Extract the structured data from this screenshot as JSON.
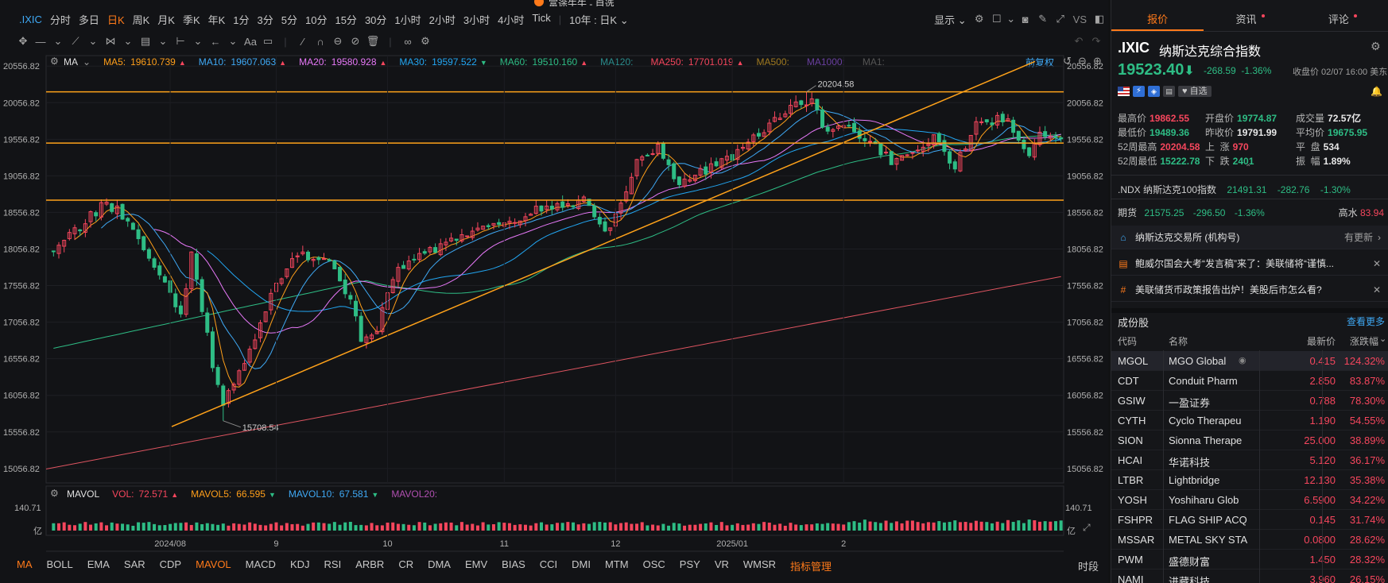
{
  "window_title": "富途牛牛 - 自选",
  "toolbar": {
    "symbol": ".IXIC",
    "periods": [
      "分时",
      "多日",
      "日K",
      "周K",
      "月K",
      "季K",
      "年K",
      "1分",
      "3分",
      "5分",
      "10分",
      "15分",
      "30分",
      "1小时",
      "2小时",
      "3小时",
      "4小时",
      "Tick"
    ],
    "active_period": "日K",
    "range_select": "10年 : 日K",
    "display_label": "显示",
    "vs_label": "VS"
  },
  "chart_header": {
    "ma_label": "MA",
    "ma_items": [
      {
        "label": "MA5:",
        "value": "19610.739",
        "color": "#ff9f1a",
        "dir": "up"
      },
      {
        "label": "MA10:",
        "value": "19607.063",
        "color": "#3fa9f5",
        "dir": "up"
      },
      {
        "label": "MA20:",
        "value": "19580.928",
        "color": "#e879f9",
        "dir": "up"
      },
      {
        "label": "MA30:",
        "value": "19597.522",
        "color": "#22a6f2",
        "dir": "down"
      },
      {
        "label": "MA60:",
        "value": "19510.160",
        "color": "#2ebd85",
        "dir": "up"
      },
      {
        "label": "MA120:",
        "value": "",
        "color": "#2a8c8c",
        "dir": ""
      },
      {
        "label": "MA250:",
        "value": "17701.019",
        "color": "#f6465d",
        "dir": "up"
      },
      {
        "label": "MA500:",
        "value": "",
        "color": "#a07a20",
        "dir": ""
      },
      {
        "label": "MA1000:",
        "value": "",
        "color": "#6a3fa0",
        "dir": ""
      },
      {
        "label": "MA1:",
        "value": "",
        "color": "#555555",
        "dir": ""
      }
    ],
    "adjust_label": "前复权"
  },
  "chart_data": {
    "type": "candlestick",
    "y_ticks": [
      "20556.82",
      "20056.82",
      "19556.82",
      "19056.82",
      "18556.82",
      "18056.82",
      "17556.82",
      "17056.82",
      "16556.82",
      "16056.82",
      "15556.82",
      "15056.82"
    ],
    "x_ticks": [
      "2024/08",
      "9",
      "10",
      "11",
      "12",
      "2025/01",
      "2"
    ],
    "annotations": {
      "high": "20204.58",
      "low": "15708.54"
    },
    "ylim": [
      14860,
      20700
    ],
    "horizontal_levels": [
      20204.58,
      19505,
      18725
    ],
    "seed": 20250207,
    "start_price": 18045,
    "targets": [
      [
        0,
        18050
      ],
      [
        10,
        18700
      ],
      [
        14,
        18450
      ],
      [
        18,
        18000
      ],
      [
        24,
        17200
      ],
      [
        26,
        17950
      ],
      [
        30,
        16500
      ],
      [
        32,
        15900
      ],
      [
        34,
        16250
      ],
      [
        38,
        16800
      ],
      [
        42,
        17600
      ],
      [
        46,
        17950
      ],
      [
        52,
        17950
      ],
      [
        56,
        17350
      ],
      [
        58,
        16850
      ],
      [
        61,
        16950
      ],
      [
        64,
        17700
      ],
      [
        70,
        18000
      ],
      [
        78,
        18300
      ],
      [
        84,
        18400
      ],
      [
        92,
        18600
      ],
      [
        100,
        18700
      ],
      [
        104,
        18300
      ],
      [
        106,
        18500
      ],
      [
        110,
        19300
      ],
      [
        114,
        19450
      ],
      [
        118,
        18950
      ],
      [
        122,
        19100
      ],
      [
        128,
        19300
      ],
      [
        134,
        19700
      ],
      [
        140,
        20050
      ],
      [
        143,
        20100
      ],
      [
        145,
        19700
      ],
      [
        150,
        19700
      ],
      [
        154,
        19500
      ],
      [
        158,
        19250
      ],
      [
        162,
        19350
      ],
      [
        166,
        19550
      ],
      [
        170,
        19200
      ],
      [
        174,
        19750
      ],
      [
        180,
        19850
      ],
      [
        184,
        19300
      ],
      [
        186,
        19600
      ],
      [
        190,
        19523
      ]
    ],
    "volume_label_max": "140.71",
    "volume_unit": "亿"
  },
  "volume_header": {
    "label": "MAVOL",
    "items": [
      {
        "label": "VOL:",
        "value": "72.571",
        "color": "#f6465d",
        "dir": "up"
      },
      {
        "label": "MAVOL5:",
        "value": "66.595",
        "color": "#ff9f1a",
        "dir": "down"
      },
      {
        "label": "MAVOL10:",
        "value": "67.581",
        "color": "#3fa9f5",
        "dir": "down"
      },
      {
        "label": "MAVOL20:",
        "value": "",
        "color": "#b04fb0",
        "dir": ""
      }
    ]
  },
  "indicators": {
    "items": [
      "MA",
      "BOLL",
      "EMA",
      "SAR",
      "CDP",
      "MAVOL",
      "MACD",
      "KDJ",
      "RSI",
      "ARBR",
      "CR",
      "DMA",
      "EMV",
      "BIAS",
      "CCI",
      "DMI",
      "MTM",
      "OSC",
      "PSY",
      "VR",
      "WMSR",
      "指标管理"
    ],
    "active": [
      "MA",
      "MAVOL",
      "指标管理"
    ],
    "right_label": "时段"
  },
  "quote": {
    "tabs": [
      "报价",
      "资讯",
      "评论"
    ],
    "code": ".IXIC",
    "name": "纳斯达克综合指数",
    "price": "19523.40",
    "change": "-268.59",
    "change_pct": "-1.36%",
    "close_time": "收盘价 02/07 16:00 美东",
    "watch_label": "自选",
    "stats": {
      "high_l": "最高价",
      "high_v": "19862.55",
      "open_l": "开盘价",
      "open_v": "19774.87",
      "volume_l": "成交量",
      "volume_v": "72.57亿",
      "low_l": "最低价",
      "low_v": "19489.36",
      "prev_l": "昨收价",
      "prev_v": "19791.99",
      "avg_l": "平均价",
      "avg_v": "19675.95",
      "wk52h_l": "52周最高",
      "wk52h_v": "20204.58",
      "up_l": "上  涨",
      "up_v": "970",
      "flat_l": "平  盘",
      "flat_v": "534",
      "wk52l_l": "52周最低",
      "wk52l_v": "15222.78",
      "down_l": "下  跌",
      "down_v": "2401",
      "amp_l": "振  幅",
      "amp_v": "1.89%"
    },
    "ndx": {
      "name": ".NDX 纳斯达克100指数",
      "price": "21491.31",
      "change": "-282.76",
      "pct": "-1.30%"
    },
    "futures": {
      "label": "期货",
      "price": "21575.25",
      "change": "-296.50",
      "pct": "-1.36%",
      "premium_l": "高水",
      "premium_v": "83.94"
    },
    "exchange": {
      "name": "纳斯达克交易所 (机构号)",
      "status": "有更新"
    },
    "news": [
      "鲍威尔国会大考“发言稿”来了：美联储将“谨慎...",
      "美联储货币政策报告出炉！美股后市怎么看?"
    ]
  },
  "constituents": {
    "title": "成份股",
    "more": "查看更多",
    "headers": [
      "代码",
      "名称",
      "最新价",
      "涨跌幅"
    ],
    "rows": [
      {
        "code": "MGOL",
        "name": "MGO Global",
        "price": "0.415",
        "pct": "124.32%"
      },
      {
        "code": "CDT",
        "name": "Conduit Pharm",
        "price": "2.850",
        "pct": "83.87%"
      },
      {
        "code": "GSIW",
        "name": "一盈证券",
        "price": "0.788",
        "pct": "78.30%"
      },
      {
        "code": "CYTH",
        "name": "Cyclo Therapeu",
        "price": "1.190",
        "pct": "54.55%"
      },
      {
        "code": "SION",
        "name": "Sionna Therape",
        "price": "25.000",
        "pct": "38.89%"
      },
      {
        "code": "HCAI",
        "name": "华诺科技",
        "price": "5.120",
        "pct": "36.17%"
      },
      {
        "code": "LTBR",
        "name": "Lightbridge",
        "price": "12.130",
        "pct": "35.38%"
      },
      {
        "code": "YOSH",
        "name": "Yoshiharu Glob",
        "price": "6.5900",
        "pct": "34.22%"
      },
      {
        "code": "FSHPR",
        "name": "FLAG SHIP ACQ",
        "price": "0.145",
        "pct": "31.74%"
      },
      {
        "code": "MSSAR",
        "name": "METAL SKY STA",
        "price": "0.0800",
        "pct": "28.62%"
      },
      {
        "code": "PWM",
        "name": "盛德财富",
        "price": "1.450",
        "pct": "28.32%"
      },
      {
        "code": "NAMI",
        "name": "进藏科技",
        "price": "3.960",
        "pct": "26.15%"
      }
    ]
  },
  "colors": {
    "up": "#f6465d",
    "down": "#2ebd85",
    "accent": "#ff7a1a",
    "level_line": "#ffa21a",
    "background": "#121316"
  }
}
